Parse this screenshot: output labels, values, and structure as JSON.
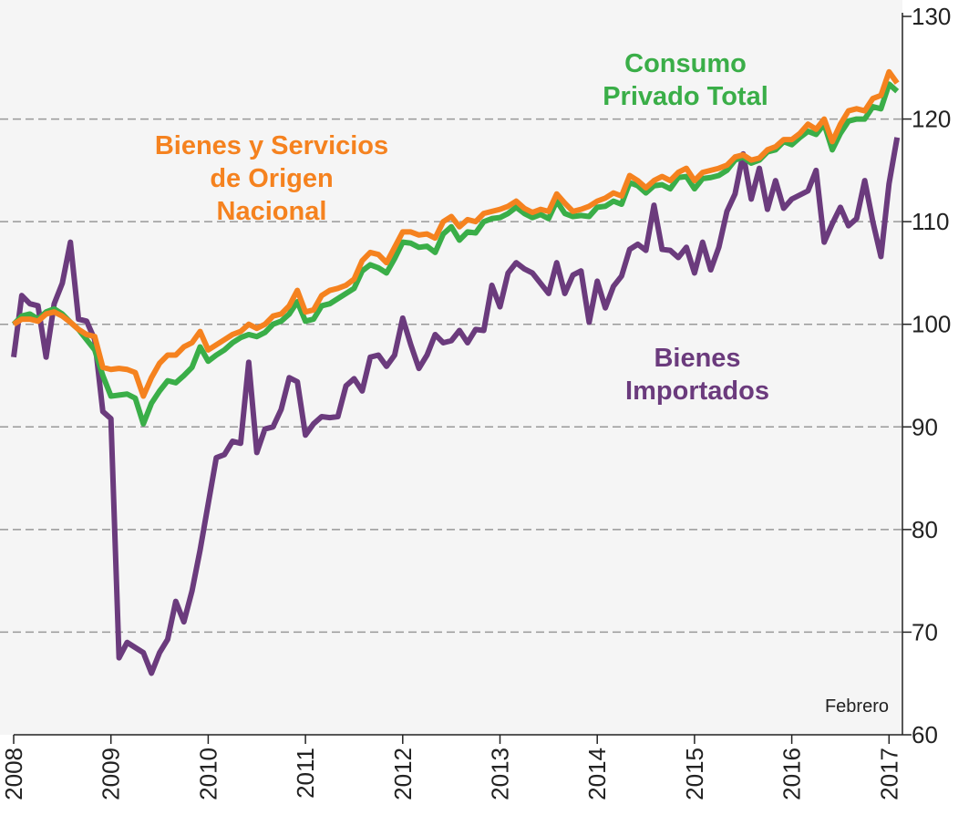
{
  "chart_data": {
    "type": "line",
    "categories": [
      "2008",
      null,
      null,
      null,
      null,
      null,
      null,
      null,
      null,
      null,
      null,
      null,
      "2009",
      null,
      null,
      null,
      null,
      null,
      null,
      null,
      null,
      null,
      null,
      null,
      "2010",
      null,
      null,
      null,
      null,
      null,
      null,
      null,
      null,
      null,
      null,
      null,
      "2011",
      null,
      null,
      null,
      null,
      null,
      null,
      null,
      null,
      null,
      null,
      null,
      "2012",
      null,
      null,
      null,
      null,
      null,
      null,
      null,
      null,
      null,
      null,
      null,
      "2013",
      null,
      null,
      null,
      null,
      null,
      null,
      null,
      null,
      null,
      null,
      null,
      "2014",
      null,
      null,
      null,
      null,
      null,
      null,
      null,
      null,
      null,
      null,
      null,
      "2015",
      null,
      null,
      null,
      null,
      null,
      null,
      null,
      null,
      null,
      null,
      null,
      "2016",
      null,
      null,
      null,
      null,
      null,
      null,
      null,
      null,
      null,
      null,
      null,
      "2017",
      null
    ],
    "series": [
      {
        "name": "Bienes\nImportados",
        "color": "#6b3b7d",
        "values": [
          96.8,
          102.8,
          102,
          101.8,
          96.8,
          102,
          104,
          108,
          100.5,
          100.3,
          98.5,
          91.5,
          90.8,
          67.5,
          69,
          68.5,
          68,
          66,
          68,
          69.3,
          73,
          71,
          74,
          78,
          82.5,
          87,
          87.3,
          88.6,
          88.4,
          96.3,
          87.5,
          89.8,
          90,
          91.7,
          94.8,
          94.4,
          89.2,
          90.3,
          91,
          90.9,
          91,
          94,
          94.7,
          93.5,
          96.8,
          97,
          95.9,
          97,
          100.6,
          98,
          95.7,
          97,
          99,
          98.2,
          98.4,
          99.4,
          98.2,
          99.5,
          99.4,
          103.8,
          101.7,
          105,
          106,
          105.4,
          105,
          104,
          103,
          106,
          103,
          104.8,
          105.2,
          100.2,
          104.2,
          101.6,
          103.7,
          104.7,
          107.3,
          107.8,
          107.2,
          111.6,
          107.3,
          107.2,
          106.5,
          107.5,
          105,
          108,
          105.3,
          107.5,
          111,
          112.7,
          116.6,
          112.2,
          115.2,
          111.2,
          114,
          111.3,
          112.2,
          112.6,
          113,
          115,
          108,
          109.8,
          111.4,
          109.6,
          110.3,
          114,
          110,
          106.6,
          113.7,
          118.2
        ]
      },
      {
        "name": "Consumo\nPrivado Total",
        "color": "#3aae48",
        "values": [
          100,
          100.8,
          101,
          100.5,
          101.2,
          101.5,
          101,
          100.2,
          99.5,
          98.5,
          97.5,
          95,
          93,
          93.1,
          93.2,
          92.8,
          90.3,
          92.3,
          93.5,
          94.5,
          94.3,
          95,
          95.8,
          97.8,
          96.4,
          97,
          97.5,
          98.2,
          98.7,
          99,
          98.8,
          99.2,
          100,
          100.3,
          101,
          102.2,
          100.3,
          100.5,
          101.8,
          102,
          102.5,
          103,
          103.5,
          105.2,
          105.8,
          105.5,
          105,
          106.4,
          108,
          107.9,
          107.5,
          107.6,
          107,
          108.8,
          109.5,
          108.2,
          109,
          108.9,
          110,
          110.3,
          110.4,
          110.8,
          111.4,
          110.8,
          110.4,
          110.7,
          110.3,
          112,
          110.8,
          110.5,
          110.6,
          110.5,
          111.4,
          111.5,
          112,
          111.7,
          113.8,
          113.5,
          112.8,
          113.5,
          113.6,
          113.2,
          114.3,
          114.4,
          113.2,
          114.2,
          114.3,
          114.5,
          115,
          116,
          116.3,
          115.7,
          116,
          116.8,
          117,
          117.8,
          117.5,
          118.2,
          118.8,
          118.5,
          119.5,
          117,
          118.6,
          119.8,
          120,
          120,
          121.2,
          121,
          123.4,
          122.7
        ]
      },
      {
        "name": "Bienes y Servicios\nde Origen\nNacional",
        "color": "#f5821f",
        "values": [
          100,
          100.5,
          100.5,
          100.3,
          101,
          101.2,
          100.8,
          100.2,
          99.5,
          99,
          98.8,
          95.8,
          95.6,
          95.7,
          95.6,
          95.3,
          93,
          94.8,
          96.2,
          97,
          97,
          97.8,
          98.2,
          99.3,
          97.5,
          98,
          98.5,
          99,
          99.3,
          100,
          99.6,
          100,
          100.8,
          101,
          101.8,
          103.3,
          101.2,
          101.4,
          102.8,
          103.3,
          103.5,
          103.8,
          104.4,
          106.2,
          107,
          106.8,
          106,
          107.5,
          109,
          109,
          108.7,
          108.8,
          108.4,
          110,
          110.5,
          109.5,
          110.2,
          110,
          110.8,
          111,
          111.2,
          111.5,
          112,
          111.3,
          110.9,
          111.2,
          111,
          112.7,
          111.8,
          111,
          111.2,
          111.5,
          112,
          112.3,
          112.8,
          112.5,
          114.5,
          114,
          113.3,
          114,
          114.4,
          114,
          114.8,
          115.2,
          114,
          114.8,
          115,
          115.2,
          115.5,
          116.3,
          116.5,
          116,
          116.2,
          117,
          117.3,
          118,
          118,
          118.6,
          119.5,
          119,
          120,
          117.8,
          119.5,
          120.8,
          121,
          120.8,
          122,
          122.3,
          124.6,
          123.5
        ]
      }
    ],
    "ylim": [
      60,
      130
    ],
    "yticks": [
      60,
      70,
      80,
      90,
      100,
      110,
      120,
      130
    ],
    "grid": true,
    "annotation": "Febrero"
  }
}
